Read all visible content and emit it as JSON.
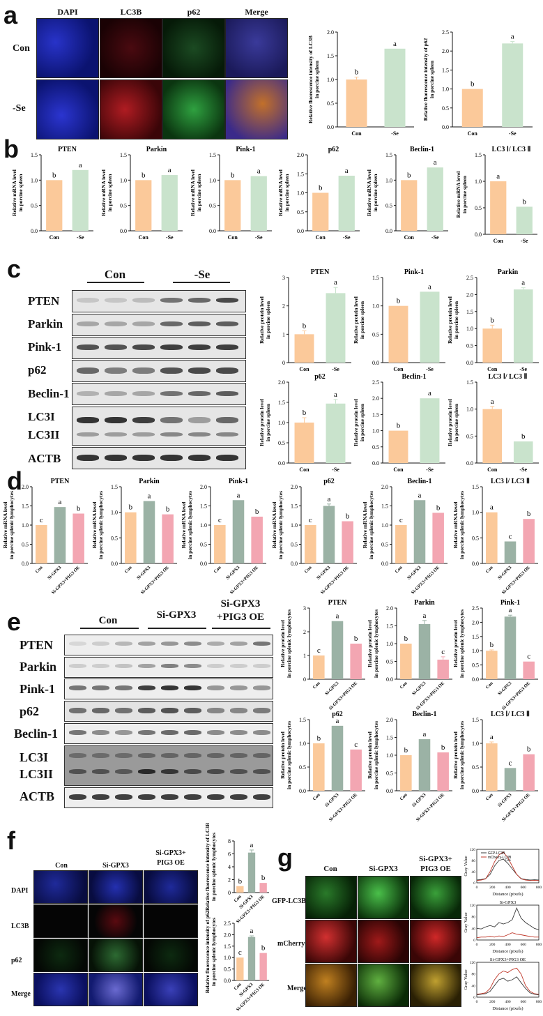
{
  "colors": {
    "con": "#fbc99a",
    "se": "#c9e3cc",
    "si": "#9bb2a5",
    "oe": "#f3a6b2",
    "gfp": "#3a3a3a",
    "mcherry": "#c0392b"
  },
  "panel_a": {
    "letter": "a",
    "columns": [
      "DAPI",
      "LC3B",
      "p62",
      "Merge"
    ],
    "rows": [
      "Con",
      "-Se"
    ]
  },
  "panel_b": {
    "letter": "b"
  },
  "panel_c": {
    "letter": "c",
    "groups": [
      "Con",
      "-Se"
    ],
    "blot_labels": [
      "PTEN",
      "Parkin",
      "Pink-1",
      "p62",
      "Beclin-1",
      "LC3I",
      "LC3II",
      "ACTB"
    ]
  },
  "panel_d": {
    "letter": "d"
  },
  "panel_e": {
    "letter": "e",
    "groups": [
      "Con",
      "Si-GPX3",
      "Si-GPX3",
      "+PIG3 OE"
    ],
    "blot_labels": [
      "PTEN",
      "Parkin",
      "Pink-1",
      "p62",
      "Beclin-1",
      "LC3I",
      "LC3II",
      "ACTB"
    ]
  },
  "panel_f": {
    "letter": "f",
    "columns": [
      "Con",
      "Si-GPX3",
      "Si-GPX3+",
      "PIG3 OE"
    ],
    "rows": [
      "DAPI",
      "LC3B",
      "p62",
      "Merge"
    ]
  },
  "panel_g": {
    "letter": "g",
    "columns": [
      "Con",
      "Si-GPX3",
      "Si-GPX3+",
      "PIG3 OE"
    ],
    "rows": [
      "GFP-LC3B",
      "mCherry-LC3B",
      "Merge"
    ],
    "lineplot_xlabel": "Distance (pixels)",
    "lineplot_ylabel": "Gray Value",
    "lineplot_titles": [
      "",
      "Si-GPX3",
      "Si-GPX3+PIG3 OE"
    ],
    "lineplot_legend": [
      "GFP-LC3B",
      "mCherry-LC3B"
    ],
    "lineplot_legend_note": "Con",
    "lineplot_xticks": [
      "0",
      "200",
      "400",
      "600",
      "800"
    ],
    "lineplot_yticks": [
      "0",
      "20",
      "40",
      "60",
      "80",
      "100",
      "120"
    ]
  },
  "chart_data": [
    {
      "id": "a1",
      "type": "bar",
      "title": "",
      "ylabel": "Relative fluorescence intensity of LC3B in porcine spleen",
      "categories": [
        "Con",
        "-Se"
      ],
      "values": [
        1.0,
        1.65
      ],
      "errors": [
        0.05,
        0.0
      ],
      "letters": [
        "b",
        "a"
      ],
      "ylim": [
        0,
        2.0
      ],
      "yticks": [
        "0.0",
        "0.5",
        "1.0",
        "1.5",
        "2.0"
      ],
      "colors": [
        "con",
        "se"
      ]
    },
    {
      "id": "a2",
      "type": "bar",
      "title": "",
      "ylabel": "Relative fluorescence intensity of p62 in porcine spleen",
      "categories": [
        "Con",
        "-Se"
      ],
      "values": [
        1.0,
        2.2
      ],
      "errors": [
        0.0,
        0.05
      ],
      "letters": [
        "b",
        "a"
      ],
      "ylim": [
        0,
        2.5
      ],
      "yticks": [
        "0.0",
        "0.5",
        "1.0",
        "1.5",
        "2.0",
        "2.5"
      ],
      "colors": [
        "con",
        "se"
      ]
    },
    {
      "id": "b1",
      "type": "bar",
      "title": "PTEN",
      "ylabel": "Relative mRNA level in porcine spleen",
      "categories": [
        "Con",
        "-Se"
      ],
      "values": [
        1.0,
        1.2
      ],
      "errors": [
        0,
        0
      ],
      "letters": [
        "b",
        "a"
      ],
      "ylim": [
        0,
        1.5
      ],
      "yticks": [
        "0.0",
        "0.5",
        "1.0",
        "1.5"
      ],
      "colors": [
        "con",
        "se"
      ]
    },
    {
      "id": "b2",
      "type": "bar",
      "title": "Parkin",
      "ylabel": "Relative mRNA level in porcine spleen",
      "categories": [
        "Con",
        "-Se"
      ],
      "values": [
        1.0,
        1.1
      ],
      "errors": [
        0,
        0
      ],
      "letters": [
        "b",
        "a"
      ],
      "ylim": [
        0,
        1.5
      ],
      "yticks": [
        "0.0",
        "0.5",
        "1.0",
        "1.5"
      ],
      "colors": [
        "con",
        "se"
      ]
    },
    {
      "id": "b3",
      "type": "bar",
      "title": "Pink-1",
      "ylabel": "Relative mRNA level in porcine spleen",
      "categories": [
        "Con",
        "-Se"
      ],
      "values": [
        1.0,
        1.08
      ],
      "errors": [
        0,
        0
      ],
      "letters": [
        "b",
        "a"
      ],
      "ylim": [
        0,
        1.5
      ],
      "yticks": [
        "0.0",
        "0.5",
        "1.0",
        "1.5"
      ],
      "colors": [
        "con",
        "se"
      ]
    },
    {
      "id": "b4",
      "type": "bar",
      "title": "p62",
      "ylabel": "Relative mRNA level in porcine spleen",
      "categories": [
        "Con",
        "-Se"
      ],
      "values": [
        1.0,
        1.45
      ],
      "errors": [
        0,
        0
      ],
      "letters": [
        "b",
        "a"
      ],
      "ylim": [
        0,
        2.0
      ],
      "yticks": [
        "0.0",
        "0.5",
        "1.0",
        "1.5",
        "2.0"
      ],
      "colors": [
        "con",
        "se"
      ]
    },
    {
      "id": "b5",
      "type": "bar",
      "title": "Beclin-1",
      "ylabel": "Relative mRNA level in porcine spleen",
      "categories": [
        "Con",
        "-Se"
      ],
      "values": [
        1.0,
        1.25
      ],
      "errors": [
        0,
        0
      ],
      "letters": [
        "b",
        "a"
      ],
      "ylim": [
        0,
        1.5
      ],
      "yticks": [
        "0.0",
        "0.5",
        "1.0",
        "1.5"
      ],
      "colors": [
        "con",
        "se"
      ]
    },
    {
      "id": "b6",
      "type": "bar",
      "title": "LC3 Ⅰ/ LC3 Ⅱ",
      "ylabel": "Relative mRNA level in porcine spleen",
      "categories": [
        "Con",
        "-Se"
      ],
      "values": [
        1.0,
        0.52
      ],
      "errors": [
        0,
        0
      ],
      "letters": [
        "a",
        "b"
      ],
      "ylim": [
        0,
        1.5
      ],
      "yticks": [
        "0.0",
        "0.5",
        "1.0",
        "1.5"
      ],
      "colors": [
        "con",
        "se"
      ]
    },
    {
      "id": "c1",
      "type": "bar",
      "title": "PTEN",
      "ylabel": "Relative protein level in porcine spleen",
      "categories": [
        "Con",
        "-Se"
      ],
      "values": [
        1.0,
        2.45
      ],
      "errors": [
        0.12,
        0.2
      ],
      "letters": [
        "b",
        "a"
      ],
      "ylim": [
        0,
        3
      ],
      "yticks": [
        "0",
        "1",
        "2",
        "3"
      ],
      "colors": [
        "con",
        "se"
      ]
    },
    {
      "id": "c2",
      "type": "bar",
      "title": "Pink-1",
      "ylabel": "Relative protein level in porcine spleen",
      "categories": [
        "Con",
        "-Se"
      ],
      "values": [
        1.0,
        1.25
      ],
      "errors": [
        0,
        0
      ],
      "letters": [
        "b",
        "a"
      ],
      "ylim": [
        0,
        1.5
      ],
      "yticks": [
        "0.0",
        "0.5",
        "1.0",
        "1.5"
      ],
      "colors": [
        "con",
        "se"
      ]
    },
    {
      "id": "c3",
      "type": "bar",
      "title": "Parkin",
      "ylabel": "Relative protein level in porcine spleen",
      "categories": [
        "Con",
        "-Se"
      ],
      "values": [
        1.0,
        2.15
      ],
      "errors": [
        0.1,
        0.05
      ],
      "letters": [
        "b",
        "a"
      ],
      "ylim": [
        0,
        2.5
      ],
      "yticks": [
        "0.0",
        "0.5",
        "1.0",
        "1.5",
        "2.0",
        "2.5"
      ],
      "colors": [
        "con",
        "se"
      ]
    },
    {
      "id": "c4",
      "type": "bar",
      "title": "p62",
      "ylabel": "Relative protein level in porcine spleen",
      "categories": [
        "Con",
        "-Se"
      ],
      "values": [
        1.0,
        1.47
      ],
      "errors": [
        0.12,
        0.1
      ],
      "letters": [
        "b",
        "a"
      ],
      "ylim": [
        0,
        2.0
      ],
      "yticks": [
        "0.0",
        "0.5",
        "1.0",
        "1.5",
        "2.0"
      ],
      "colors": [
        "con",
        "se"
      ]
    },
    {
      "id": "c5",
      "type": "bar",
      "title": "Beclin-1",
      "ylabel": "Relative protein level in porcine spleen",
      "categories": [
        "Con",
        "-Se"
      ],
      "values": [
        1.0,
        2.0
      ],
      "errors": [
        0,
        0
      ],
      "letters": [
        "b",
        "a"
      ],
      "ylim": [
        0,
        2.5
      ],
      "yticks": [
        "0.0",
        "0.5",
        "1.0",
        "1.5",
        "2.0",
        "2.5"
      ],
      "colors": [
        "con",
        "se"
      ]
    },
    {
      "id": "c6",
      "type": "bar",
      "title": "LC3 Ⅰ/ LC3 Ⅱ",
      "ylabel": "Relative protein level in porcine spleen",
      "categories": [
        "Con",
        "-Se"
      ],
      "values": [
        1.0,
        0.4
      ],
      "errors": [
        0.05,
        0
      ],
      "letters": [
        "a",
        "b"
      ],
      "ylim": [
        0,
        1.5
      ],
      "yticks": [
        "0.0",
        "0.5",
        "1.0",
        "1.5"
      ],
      "colors": [
        "con",
        "se"
      ]
    },
    {
      "id": "d1",
      "type": "bar",
      "title": "PTEN",
      "ylabel": "Relative mRNA level in porcine splenic lymphocytes",
      "categories": [
        "Con",
        "Si-GPX3",
        "Si-GPX3+PIG3 OE"
      ],
      "values": [
        1.0,
        1.47,
        1.3
      ],
      "errors": [
        0,
        0,
        0
      ],
      "letters": [
        "c",
        "a",
        "b"
      ],
      "ylim": [
        0,
        2.0
      ],
      "yticks": [
        "0.0",
        "0.5",
        "1.0",
        "1.5",
        "2.0"
      ],
      "colors": [
        "con",
        "si",
        "oe"
      ]
    },
    {
      "id": "d2",
      "type": "bar",
      "title": "Parkin",
      "ylabel": "Relative mRNA level in porcine splenic lymphocytes",
      "categories": [
        "Con",
        "Si-GPX3",
        "Si-GPX3+PIG3 OE"
      ],
      "values": [
        1.0,
        1.22,
        0.96
      ],
      "errors": [
        0,
        0,
        0
      ],
      "letters": [
        "b",
        "a",
        "b"
      ],
      "ylim": [
        0,
        1.5
      ],
      "yticks": [
        "0.0",
        "0.5",
        "1.0",
        "1.5"
      ],
      "colors": [
        "con",
        "si",
        "oe"
      ]
    },
    {
      "id": "d3",
      "type": "bar",
      "title": "Pink-1",
      "ylabel": "Relative mRNA level in porcine splenic lymphocytes",
      "categories": [
        "Con",
        "Si-GPX3",
        "Si-GPX3+PIG3 OE"
      ],
      "values": [
        1.0,
        1.65,
        1.22
      ],
      "errors": [
        0,
        0,
        0
      ],
      "letters": [
        "c",
        "a",
        "b"
      ],
      "ylim": [
        0,
        2.0
      ],
      "yticks": [
        "0.0",
        "0.5",
        "1.0",
        "1.5",
        "2.0"
      ],
      "colors": [
        "con",
        "si",
        "oe"
      ]
    },
    {
      "id": "d4",
      "type": "bar",
      "title": "p62",
      "ylabel": "Relative mRNA level in porcine splenic lymphocytes",
      "categories": [
        "Con",
        "Si-GPX3",
        "Si-GPX3+PIG3 OE"
      ],
      "values": [
        1.0,
        1.5,
        1.1
      ],
      "errors": [
        0,
        0.05,
        0
      ],
      "letters": [
        "c",
        "a",
        "b"
      ],
      "ylim": [
        0,
        2.0
      ],
      "yticks": [
        "0.0",
        "0.5",
        "1.0",
        "1.5",
        "2.0"
      ],
      "colors": [
        "con",
        "si",
        "oe"
      ]
    },
    {
      "id": "d5",
      "type": "bar",
      "title": "Beclin-1",
      "ylabel": "Relative mRNA level in porcine splenic lymphocytes",
      "categories": [
        "Con",
        "Si-GPX3",
        "Si-GPX3+PIG3 OE"
      ],
      "values": [
        1.0,
        1.65,
        1.32
      ],
      "errors": [
        0,
        0,
        0
      ],
      "letters": [
        "c",
        "a",
        "b"
      ],
      "ylim": [
        0,
        2.0
      ],
      "yticks": [
        "0.0",
        "0.5",
        "1.0",
        "1.5",
        "2.0"
      ],
      "colors": [
        "con",
        "si",
        "oe"
      ]
    },
    {
      "id": "d6",
      "type": "bar",
      "title": "LC3 Ⅰ/ LC3 Ⅱ",
      "ylabel": "Relative mRNA level in porcine splenic lymphocytes",
      "categories": [
        "Con",
        "Si-GPX3",
        "Si-GPX3+PIG3 OE"
      ],
      "values": [
        1.0,
        0.43,
        0.87
      ],
      "errors": [
        0,
        0,
        0
      ],
      "letters": [
        "a",
        "c",
        "b"
      ],
      "ylim": [
        0,
        1.5
      ],
      "yticks": [
        "0.0",
        "0.5",
        "1.0",
        "1.5"
      ],
      "colors": [
        "con",
        "si",
        "oe"
      ]
    },
    {
      "id": "e1",
      "type": "bar",
      "title": "PTEN",
      "ylabel": "Relative protein level in porcine splenic lymphocytes",
      "categories": [
        "Con",
        "Si-GPX3",
        "Si-GPX3+PIG3 OE"
      ],
      "values": [
        1.0,
        2.45,
        1.5
      ],
      "errors": [
        0,
        0,
        0
      ],
      "letters": [
        "c",
        "a",
        "b"
      ],
      "ylim": [
        0,
        3
      ],
      "yticks": [
        "0",
        "1",
        "2",
        "3"
      ],
      "colors": [
        "con",
        "si",
        "oe"
      ]
    },
    {
      "id": "e2",
      "type": "bar",
      "title": "Parkin",
      "ylabel": "Relative protein level in porcine splenic lymphocytes",
      "categories": [
        "Con",
        "Si-GPX3",
        "Si-GPX3+PIG3 OE"
      ],
      "values": [
        1.0,
        1.55,
        0.55
      ],
      "errors": [
        0,
        0.1,
        0.08
      ],
      "letters": [
        "b",
        "a",
        "c"
      ],
      "ylim": [
        0,
        2.0
      ],
      "yticks": [
        "0.0",
        "0.5",
        "1.0",
        "1.5",
        "2.0"
      ],
      "colors": [
        "con",
        "si",
        "oe"
      ]
    },
    {
      "id": "e3",
      "type": "bar",
      "title": "Pink-1",
      "ylabel": "Relative protein level in porcine splenic lymphocytes",
      "categories": [
        "Con",
        "Si-GPX3",
        "Si-GPX3+PIG3 OE"
      ],
      "values": [
        1.0,
        2.2,
        0.62
      ],
      "errors": [
        0.03,
        0.05,
        0
      ],
      "letters": [
        "b",
        "a",
        "c"
      ],
      "ylim": [
        0,
        2.5
      ],
      "yticks": [
        "0.0",
        "0.5",
        "1.0",
        "1.5",
        "2.0",
        "2.5"
      ],
      "colors": [
        "con",
        "si",
        "oe"
      ]
    },
    {
      "id": "e4",
      "type": "bar",
      "title": "p62",
      "ylabel": "Relative protein level in porcine splenic lymphocytes",
      "categories": [
        "Con",
        "Si-GPX3",
        "Si-GPX3+PIG3 OE"
      ],
      "values": [
        1.0,
        1.37,
        0.87
      ],
      "errors": [
        0,
        0,
        0
      ],
      "letters": [
        "b",
        "a",
        "c"
      ],
      "ylim": [
        0,
        1.5
      ],
      "yticks": [
        "0.0",
        "0.5",
        "1.0",
        "1.5"
      ],
      "colors": [
        "con",
        "si",
        "oe"
      ]
    },
    {
      "id": "e5",
      "type": "bar",
      "title": "Beclin-1",
      "ylabel": "Relative protein level in porcine splenic lymphocytes",
      "categories": [
        "Con",
        "Si-GPX3",
        "Si-GPX3+PIG3 OE"
      ],
      "values": [
        1.0,
        1.45,
        1.08
      ],
      "errors": [
        0,
        0,
        0
      ],
      "letters": [
        "b",
        "a",
        "b"
      ],
      "ylim": [
        0,
        2.0
      ],
      "yticks": [
        "0.0",
        "0.5",
        "1.0",
        "1.5",
        "2.0"
      ],
      "colors": [
        "con",
        "si",
        "oe"
      ]
    },
    {
      "id": "e6",
      "type": "bar",
      "title": "LC3 Ⅰ/ LC3 Ⅱ",
      "ylabel": "Relative protein level in porcine splenic lymphocytes",
      "categories": [
        "Con",
        "Si-GPX3",
        "Si-GPX3+PIG3 OE"
      ],
      "values": [
        1.0,
        0.48,
        0.77
      ],
      "errors": [
        0.03,
        0,
        0
      ],
      "letters": [
        "a",
        "c",
        "b"
      ],
      "ylim": [
        0,
        1.5
      ],
      "yticks": [
        "0.0",
        "0.5",
        "1.0",
        "1.5"
      ],
      "colors": [
        "con",
        "si",
        "oe"
      ]
    },
    {
      "id": "f1",
      "type": "bar",
      "title": "",
      "ylabel": "Relative fluorescence intensity of LC3B in porcine splenic lymphocytes",
      "categories": [
        "Con",
        "Si-GPX3",
        "Si-GPX3+PIG3 OE"
      ],
      "values": [
        1.0,
        6.2,
        1.5
      ],
      "errors": [
        0,
        0.4,
        0
      ],
      "letters": [
        "b",
        "a",
        "b"
      ],
      "ylim": [
        0,
        8
      ],
      "yticks": [
        "0",
        "2",
        "4",
        "6",
        "8"
      ],
      "colors": [
        "con",
        "si",
        "oe"
      ]
    },
    {
      "id": "f2",
      "type": "bar",
      "title": "",
      "ylabel": "Relative fluorescence intensity of p62 in porcine splenic lymphocytes",
      "categories": [
        "Con",
        "Si-GPX3",
        "Si-GPX3+PIG3 OE"
      ],
      "values": [
        1.0,
        1.9,
        1.2
      ],
      "errors": [
        0,
        0.05,
        0
      ],
      "letters": [
        "c",
        "a",
        "b"
      ],
      "ylim": [
        0,
        2.5
      ],
      "yticks": [
        "0.0",
        "0.5",
        "1.0",
        "1.5",
        "2.0",
        "2.5"
      ],
      "colors": [
        "con",
        "si",
        "oe"
      ]
    }
  ]
}
